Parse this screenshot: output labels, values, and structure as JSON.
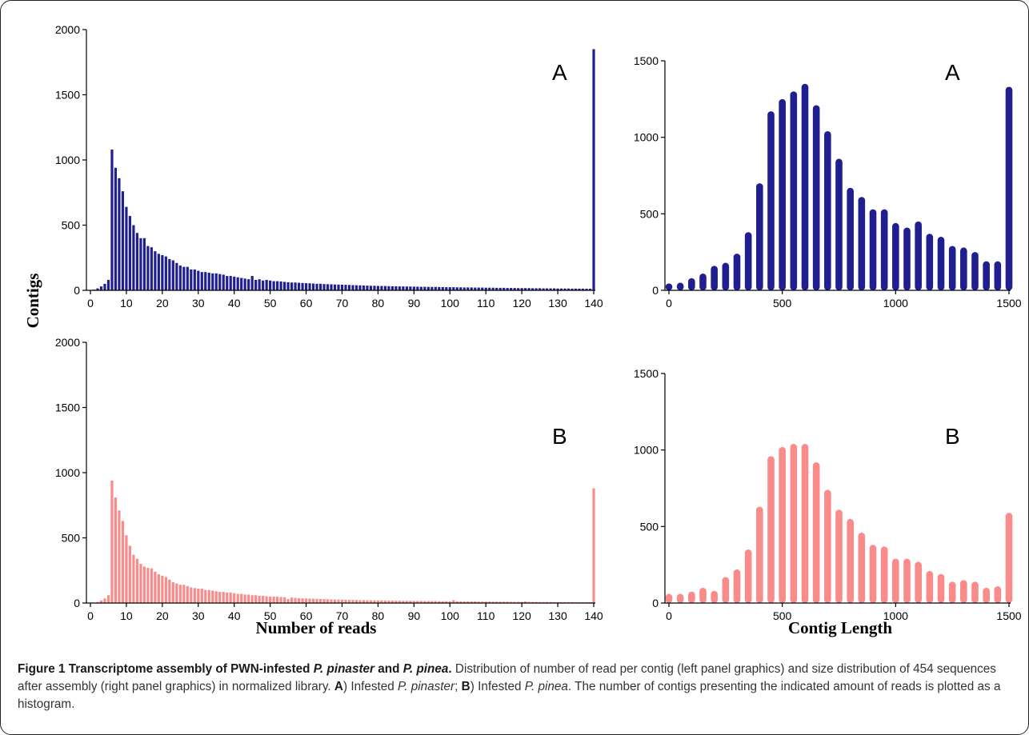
{
  "figure": {
    "ylabel": "Contigs",
    "xlabel_left": "Number of reads",
    "xlabel_right": "Contig Length",
    "caption": {
      "label": "Figure 1",
      "title_pre": "Transcriptome assembly of PWN-infested ",
      "title_sp1": "P. pinaster",
      "title_mid": " and ",
      "title_sp2": "P. pinea",
      "title_end": ".",
      "body1": " Distribution of number of read per contig (left panel graphics) and size distribution of 454 sequences after assembly (right panel graphics) in normalized library. ",
      "a_label": "A",
      "a_text": ") Infested ",
      "a_species": "P. pinaster",
      "sep": "; ",
      "b_label": "B",
      "b_text": ") Infested ",
      "b_species": "P. pinea",
      "body2": ". The number of contigs presenting the indicated amount of reads is plotted as a histogram."
    }
  },
  "colors": {
    "series_a": "#1f1f8f",
    "series_b": "#f98b8b"
  },
  "chart_data": [
    {
      "type": "bar",
      "panel": "A",
      "xlabel": "Number of reads",
      "ylabel": "Contigs",
      "xlim": [
        0,
        140
      ],
      "ylim": [
        0,
        2000
      ],
      "xticks": [
        0,
        10,
        20,
        30,
        40,
        50,
        60,
        70,
        80,
        90,
        100,
        110,
        120,
        130,
        140
      ],
      "yticks": [
        0,
        500,
        1000,
        1500,
        2000
      ],
      "x": [
        1,
        2,
        3,
        4,
        5,
        6,
        7,
        8,
        9,
        10,
        11,
        12,
        13,
        14,
        15,
        16,
        17,
        18,
        19,
        20,
        21,
        22,
        23,
        24,
        25,
        26,
        27,
        28,
        29,
        30,
        31,
        32,
        33,
        34,
        35,
        36,
        37,
        38,
        39,
        40,
        41,
        42,
        43,
        44,
        45,
        46,
        47,
        48,
        49,
        50,
        51,
        52,
        53,
        54,
        55,
        56,
        57,
        58,
        59,
        60,
        61,
        62,
        63,
        64,
        65,
        66,
        67,
        68,
        69,
        70,
        71,
        72,
        73,
        74,
        75,
        76,
        77,
        78,
        79,
        80,
        81,
        82,
        83,
        84,
        85,
        86,
        87,
        88,
        89,
        90,
        91,
        92,
        93,
        94,
        95,
        96,
        97,
        98,
        99,
        100,
        101,
        102,
        103,
        104,
        105,
        106,
        107,
        108,
        109,
        110,
        111,
        112,
        113,
        114,
        115,
        116,
        117,
        118,
        119,
        120,
        121,
        122,
        123,
        124,
        125,
        126,
        127,
        128,
        129,
        130,
        131,
        132,
        133,
        134,
        135,
        136,
        137,
        138,
        139,
        140
      ],
      "values": [
        5,
        15,
        30,
        50,
        80,
        1080,
        940,
        860,
        760,
        640,
        570,
        500,
        440,
        400,
        400,
        340,
        330,
        300,
        280,
        270,
        260,
        240,
        230,
        210,
        190,
        180,
        180,
        160,
        160,
        150,
        140,
        140,
        135,
        130,
        130,
        125,
        120,
        110,
        110,
        105,
        100,
        95,
        90,
        85,
        110,
        80,
        85,
        75,
        80,
        75,
        70,
        70,
        68,
        65,
        62,
        60,
        60,
        58,
        56,
        55,
        54,
        52,
        50,
        50,
        48,
        47,
        46,
        45,
        44,
        43,
        42,
        41,
        40,
        39,
        38,
        37,
        36,
        35,
        35,
        34,
        33,
        33,
        32,
        31,
        31,
        30,
        30,
        29,
        29,
        28,
        28,
        27,
        27,
        26,
        26,
        26,
        25,
        25,
        24,
        24,
        24,
        23,
        23,
        22,
        22,
        22,
        21,
        21,
        21,
        20,
        20,
        20,
        19,
        19,
        19,
        18,
        18,
        18,
        17,
        17,
        17,
        17,
        16,
        16,
        16,
        15,
        15,
        15,
        15,
        14,
        14,
        14,
        14,
        13,
        13,
        13,
        13,
        12,
        12,
        1850
      ]
    },
    {
      "type": "bar",
      "panel": "A",
      "xlabel": "Contig Length",
      "ylabel": "Contigs",
      "xlim": [
        0,
        1500
      ],
      "ylim": [
        0,
        1500
      ],
      "xticks": [
        0,
        500,
        1000,
        1500
      ],
      "yticks": [
        0,
        500,
        1000,
        1500
      ],
      "x": [
        0,
        50,
        100,
        150,
        200,
        250,
        300,
        350,
        400,
        450,
        500,
        550,
        600,
        650,
        700,
        750,
        800,
        850,
        900,
        950,
        1000,
        1050,
        1100,
        1150,
        1200,
        1250,
        1300,
        1350,
        1400,
        1450,
        1500
      ],
      "values": [
        40,
        50,
        80,
        110,
        160,
        180,
        240,
        380,
        700,
        1170,
        1250,
        1300,
        1350,
        1210,
        1040,
        860,
        670,
        610,
        530,
        530,
        440,
        410,
        450,
        370,
        350,
        290,
        280,
        250,
        190,
        190,
        1330
      ]
    },
    {
      "type": "bar",
      "panel": "B",
      "xlabel": "Number of reads",
      "ylabel": "Contigs",
      "xlim": [
        0,
        140
      ],
      "ylim": [
        0,
        2000
      ],
      "xticks": [
        0,
        10,
        20,
        30,
        40,
        50,
        60,
        70,
        80,
        90,
        100,
        110,
        120,
        130,
        140
      ],
      "yticks": [
        0,
        500,
        1000,
        1500,
        2000
      ],
      "x": [
        1,
        2,
        3,
        4,
        5,
        6,
        7,
        8,
        9,
        10,
        11,
        12,
        13,
        14,
        15,
        16,
        17,
        18,
        19,
        20,
        21,
        22,
        23,
        24,
        25,
        26,
        27,
        28,
        29,
        30,
        31,
        32,
        33,
        34,
        35,
        36,
        37,
        38,
        39,
        40,
        41,
        42,
        43,
        44,
        45,
        46,
        47,
        48,
        49,
        50,
        51,
        52,
        53,
        54,
        55,
        56,
        57,
        58,
        59,
        60,
        61,
        62,
        63,
        64,
        65,
        66,
        67,
        68,
        69,
        70,
        71,
        72,
        73,
        74,
        75,
        76,
        77,
        78,
        79,
        80,
        81,
        82,
        83,
        84,
        85,
        86,
        87,
        88,
        89,
        90,
        91,
        92,
        93,
        94,
        95,
        96,
        97,
        98,
        99,
        100,
        101,
        102,
        103,
        104,
        105,
        106,
        107,
        108,
        109,
        110,
        111,
        112,
        113,
        114,
        115,
        116,
        117,
        118,
        119,
        120,
        121,
        122,
        123,
        124,
        125,
        126,
        127,
        128,
        129,
        130,
        131,
        132,
        133,
        134,
        135,
        136,
        137,
        138,
        139,
        140
      ],
      "values": [
        3,
        8,
        20,
        35,
        60,
        940,
        810,
        710,
        630,
        520,
        440,
        370,
        340,
        300,
        280,
        270,
        265,
        240,
        220,
        210,
        200,
        180,
        160,
        150,
        140,
        140,
        130,
        120,
        115,
        110,
        110,
        100,
        100,
        95,
        90,
        85,
        85,
        80,
        80,
        75,
        70,
        70,
        65,
        65,
        60,
        60,
        55,
        55,
        52,
        50,
        50,
        48,
        46,
        45,
        30,
        42,
        40,
        38,
        36,
        35,
        34,
        33,
        32,
        31,
        30,
        29,
        28,
        27,
        27,
        26,
        25,
        24,
        24,
        23,
        22,
        22,
        21,
        21,
        20,
        20,
        20,
        19,
        19,
        18,
        18,
        18,
        17,
        17,
        17,
        16,
        16,
        16,
        15,
        15,
        15,
        15,
        14,
        14,
        14,
        13,
        22,
        13,
        13,
        12,
        12,
        12,
        12,
        11,
        11,
        11,
        11,
        10,
        10,
        10,
        10,
        10,
        9,
        9,
        9,
        9,
        12,
        9,
        8,
        8,
        8,
        8,
        8,
        8,
        7,
        7,
        7,
        7,
        7,
        7,
        6,
        6,
        6,
        6,
        6,
        880
      ]
    },
    {
      "type": "bar",
      "panel": "B",
      "xlabel": "Contig Length",
      "ylabel": "Contigs",
      "xlim": [
        0,
        1500
      ],
      "ylim": [
        0,
        1500
      ],
      "xticks": [
        0,
        500,
        1000,
        1500
      ],
      "yticks": [
        0,
        500,
        1000,
        1500
      ],
      "x": [
        0,
        50,
        100,
        150,
        200,
        250,
        300,
        350,
        400,
        450,
        500,
        550,
        600,
        650,
        700,
        750,
        800,
        850,
        900,
        950,
        1000,
        1050,
        1100,
        1150,
        1200,
        1250,
        1300,
        1350,
        1400,
        1450,
        1500
      ],
      "values": [
        60,
        60,
        75,
        100,
        80,
        170,
        220,
        350,
        630,
        960,
        1020,
        1040,
        1040,
        920,
        740,
        610,
        550,
        460,
        380,
        370,
        290,
        290,
        270,
        210,
        190,
        140,
        150,
        140,
        100,
        110,
        590
      ]
    }
  ]
}
